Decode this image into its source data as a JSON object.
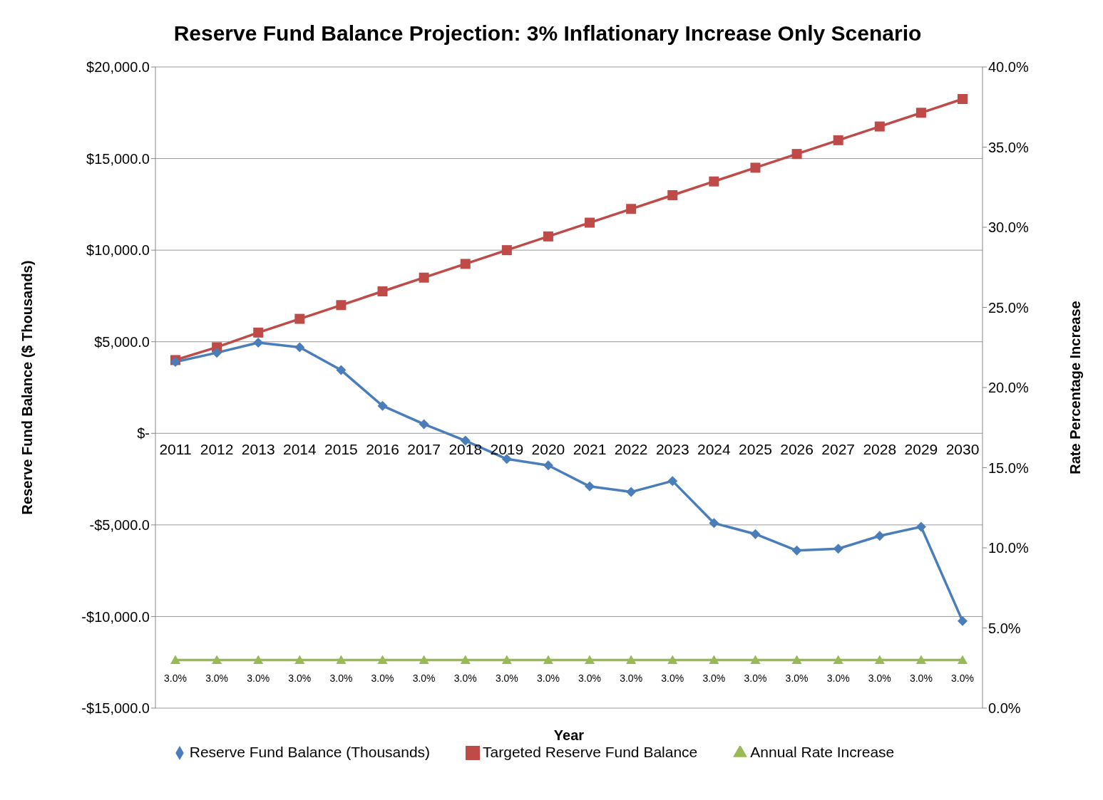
{
  "chart_data": {
    "type": "line",
    "title": "Reserve Fund Balance Projection: 3% Inflationary Increase Only Scenario",
    "xlabel": "Year",
    "ylabel": "Reserve Fund Balance ($ Thousands)",
    "y2label": "Rate Percentage Increase",
    "categories": [
      "2011",
      "2012",
      "2013",
      "2014",
      "2015",
      "2016",
      "2017",
      "2018",
      "2019",
      "2020",
      "2021",
      "2022",
      "2023",
      "2024",
      "2025",
      "2026",
      "2027",
      "2028",
      "2029",
      "2030"
    ],
    "series": [
      {
        "name": "Reserve Fund Balance (Thousands)",
        "color": "#4a7ebb",
        "marker": "diamond",
        "values": [
          3900,
          4400,
          4950,
          4700,
          3450,
          1500,
          500,
          -400,
          -1400,
          -1750,
          -2900,
          -3200,
          -2600,
          -4900,
          -5500,
          -6400,
          -6300,
          -5600,
          -5100,
          -10250
        ]
      },
      {
        "name": "Targeted Reserve Fund Balance",
        "color": "#be4b48",
        "marker": "square",
        "values": [
          4000,
          4700,
          5500,
          6250,
          7000,
          7750,
          8500,
          9250,
          10000,
          10750,
          11500,
          12250,
          13000,
          13750,
          14500,
          15250,
          16000,
          16750,
          17500,
          18250
        ]
      },
      {
        "name": "Annual Rate Increase",
        "color": "#98b954",
        "marker": "triangle",
        "axis": "y2",
        "values": [
          3,
          3,
          3,
          3,
          3,
          3,
          3,
          3,
          3,
          3,
          3,
          3,
          3,
          3,
          3,
          3,
          3,
          3,
          3,
          3
        ],
        "value_labels": [
          "3.0%",
          "3.0%",
          "3.0%",
          "3.0%",
          "3.0%",
          "3.0%",
          "3.0%",
          "3.0%",
          "3.0%",
          "3.0%",
          "3.0%",
          "3.0%",
          "3.0%",
          "3.0%",
          "3.0%",
          "3.0%",
          "3.0%",
          "3.0%",
          "3.0%",
          "3.0%"
        ]
      }
    ],
    "ylim": [
      -15000,
      20000
    ],
    "yticks": [
      {
        "value": -15000,
        "label": "-$15,000.0"
      },
      {
        "value": -10000,
        "label": "-$10,000.0"
      },
      {
        "value": -5000,
        "label": "-$5,000.0"
      },
      {
        "value": 0,
        "label": "$-"
      },
      {
        "value": 5000,
        "label": "$5,000.0"
      },
      {
        "value": 10000,
        "label": "$10,000.0"
      },
      {
        "value": 15000,
        "label": "$15,000.0"
      },
      {
        "value": 20000,
        "label": "$20,000.0"
      }
    ],
    "y2lim": [
      0,
      40
    ],
    "y2ticks": [
      {
        "value": 0,
        "label": "0.0%"
      },
      {
        "value": 5,
        "label": "5.0%"
      },
      {
        "value": 10,
        "label": "10.0%"
      },
      {
        "value": 15,
        "label": "15.0%"
      },
      {
        "value": 20,
        "label": "20.0%"
      },
      {
        "value": 25,
        "label": "25.0%"
      },
      {
        "value": 30,
        "label": "30.0%"
      },
      {
        "value": 35,
        "label": "35.0%"
      },
      {
        "value": 40,
        "label": "40.0%"
      }
    ],
    "grid": "y",
    "legend": "bottom"
  }
}
